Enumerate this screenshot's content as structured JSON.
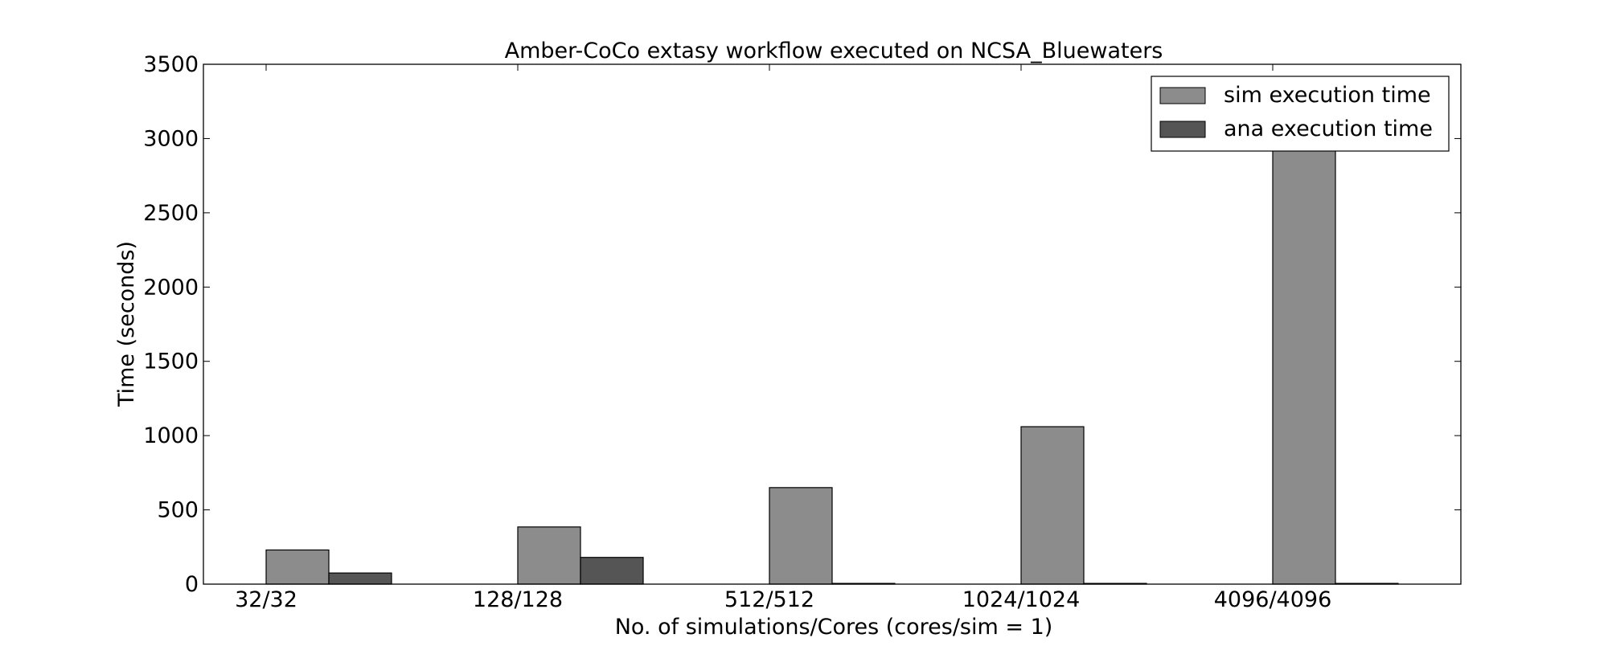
{
  "chart_data": {
    "type": "bar",
    "title": "Amber-CoCo extasy workflow executed on NCSA_Bluewaters",
    "xlabel": "No. of simulations/Cores (cores/sim = 1)",
    "ylabel": "Time (seconds)",
    "categories": [
      "32/32",
      "128/128",
      "512/512",
      "1024/1024",
      "4096/4096"
    ],
    "ylim": [
      0,
      3500
    ],
    "yticks": [
      0,
      500,
      1000,
      1500,
      2000,
      2500,
      3000,
      3500
    ],
    "grid": false,
    "legend_position": "top-right",
    "series": [
      {
        "name": "sim execution time",
        "color": "#8c8c8c",
        "values": [
          230,
          385,
          650,
          1060,
          3050
        ]
      },
      {
        "name": "ana execution time",
        "color": "#555555",
        "values": [
          75,
          180,
          5,
          5,
          5
        ]
      }
    ]
  }
}
